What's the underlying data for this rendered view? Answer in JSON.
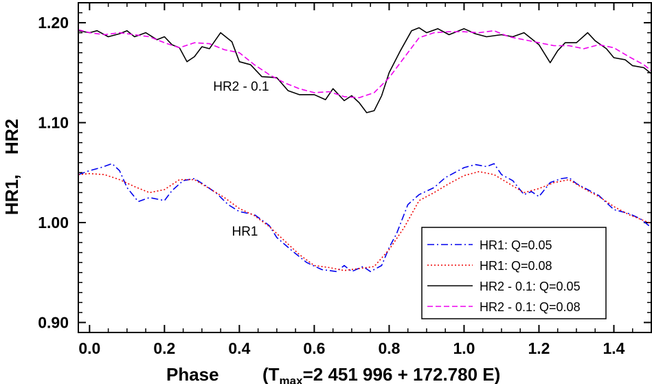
{
  "chart_data": {
    "type": "line",
    "xlabel": "Phase",
    "xlabel_note_prefix": "(T",
    "xlabel_note_sub": "max",
    "xlabel_note_suffix": "=2 451 996 + 172.780 E)",
    "ylabel": "HR1,    HR2",
    "xlim": [
      -0.03,
      1.5
    ],
    "ylim": [
      0.89,
      1.22
    ],
    "xticks": [
      0.0,
      0.2,
      0.4,
      0.6,
      0.8,
      1.0,
      1.2,
      1.4
    ],
    "xtick_labels": [
      "0.0",
      "0.2",
      "0.4",
      "0.6",
      "0.8",
      "1.0",
      "1.2",
      "1.4"
    ],
    "yticks": [
      0.9,
      1.0,
      1.1,
      1.2
    ],
    "ytick_labels": [
      "0.90",
      "1.00",
      "1.10",
      "1.20"
    ],
    "grid": false,
    "legend_position": "bottom-right",
    "annotations": [
      {
        "text": "HR2 - 0.1",
        "x": 0.33,
        "y": 1.132
      },
      {
        "text": "HR1",
        "x": 0.38,
        "y": 0.987
      }
    ],
    "series": [
      {
        "name": "HR1: Q=0.05",
        "color": "#0000ee",
        "dash": "10,4,2,4",
        "x": [
          -0.03,
          0.0,
          0.03,
          0.06,
          0.08,
          0.1,
          0.13,
          0.16,
          0.2,
          0.22,
          0.25,
          0.28,
          0.31,
          0.34,
          0.37,
          0.4,
          0.44,
          0.48,
          0.5,
          0.54,
          0.58,
          0.62,
          0.66,
          0.68,
          0.7,
          0.73,
          0.75,
          0.78,
          0.8,
          0.82,
          0.85,
          0.88,
          0.92,
          0.95,
          1.0,
          1.03,
          1.06,
          1.08,
          1.1,
          1.13,
          1.16,
          1.18,
          1.2,
          1.23,
          1.26,
          1.28,
          1.3,
          1.33,
          1.36,
          1.4,
          1.44,
          1.47,
          1.5
        ],
        "y": [
          1.048,
          1.052,
          1.055,
          1.059,
          1.052,
          1.035,
          1.021,
          1.025,
          1.022,
          1.032,
          1.042,
          1.044,
          1.037,
          1.029,
          1.018,
          1.011,
          1.008,
          0.997,
          0.985,
          0.972,
          0.96,
          0.953,
          0.951,
          0.957,
          0.951,
          0.956,
          0.951,
          0.957,
          0.975,
          0.989,
          1.018,
          1.028,
          1.035,
          1.045,
          1.055,
          1.058,
          1.056,
          1.059,
          1.048,
          1.042,
          1.028,
          1.031,
          1.026,
          1.04,
          1.044,
          1.045,
          1.039,
          1.033,
          1.027,
          1.013,
          1.009,
          1.004,
          0.995
        ]
      },
      {
        "name": "HR1: Q=0.08",
        "color": "#ee0000",
        "dash": "2,3",
        "x": [
          -0.03,
          0.0,
          0.04,
          0.08,
          0.12,
          0.16,
          0.2,
          0.24,
          0.28,
          0.32,
          0.36,
          0.4,
          0.44,
          0.48,
          0.52,
          0.56,
          0.6,
          0.64,
          0.68,
          0.72,
          0.76,
          0.8,
          0.84,
          0.88,
          0.92,
          0.96,
          1.0,
          1.04,
          1.08,
          1.12,
          1.16,
          1.2,
          1.24,
          1.28,
          1.32,
          1.36,
          1.4,
          1.44,
          1.48,
          1.5
        ],
        "y": [
          1.048,
          1.049,
          1.048,
          1.043,
          1.036,
          1.03,
          1.033,
          1.043,
          1.043,
          1.034,
          1.025,
          1.014,
          1.007,
          0.996,
          0.982,
          0.968,
          0.957,
          0.955,
          0.952,
          0.954,
          0.956,
          0.973,
          0.995,
          1.022,
          1.03,
          1.039,
          1.047,
          1.051,
          1.048,
          1.039,
          1.03,
          1.034,
          1.04,
          1.043,
          1.034,
          1.026,
          1.016,
          1.008,
          1.002,
          0.999
        ]
      },
      {
        "name": "HR2 - 0.1: Q=0.05",
        "color": "#000000",
        "dash": "",
        "x": [
          -0.03,
          0.0,
          0.02,
          0.05,
          0.08,
          0.1,
          0.12,
          0.15,
          0.18,
          0.2,
          0.22,
          0.24,
          0.26,
          0.28,
          0.3,
          0.32,
          0.35,
          0.38,
          0.4,
          0.43,
          0.46,
          0.5,
          0.53,
          0.56,
          0.6,
          0.63,
          0.65,
          0.68,
          0.7,
          0.72,
          0.74,
          0.76,
          0.78,
          0.8,
          0.83,
          0.86,
          0.88,
          0.9,
          0.93,
          0.96,
          1.0,
          1.03,
          1.06,
          1.1,
          1.13,
          1.16,
          1.2,
          1.23,
          1.25,
          1.27,
          1.3,
          1.33,
          1.35,
          1.38,
          1.4,
          1.43,
          1.45,
          1.48,
          1.5
        ],
        "y": [
          1.192,
          1.19,
          1.192,
          1.186,
          1.189,
          1.192,
          1.186,
          1.19,
          1.183,
          1.186,
          1.178,
          1.175,
          1.161,
          1.166,
          1.176,
          1.174,
          1.19,
          1.181,
          1.161,
          1.158,
          1.146,
          1.145,
          1.132,
          1.128,
          1.128,
          1.123,
          1.134,
          1.122,
          1.127,
          1.12,
          1.11,
          1.112,
          1.127,
          1.15,
          1.172,
          1.192,
          1.195,
          1.19,
          1.194,
          1.188,
          1.194,
          1.189,
          1.186,
          1.188,
          1.186,
          1.19,
          1.178,
          1.16,
          1.172,
          1.18,
          1.18,
          1.19,
          1.182,
          1.174,
          1.165,
          1.163,
          1.157,
          1.155,
          1.149
        ]
      },
      {
        "name": "HR2 - 0.1: Q=0.08",
        "color": "#ee00ee",
        "dash": "8,4",
        "x": [
          -0.03,
          0.0,
          0.04,
          0.08,
          0.12,
          0.16,
          0.2,
          0.24,
          0.28,
          0.32,
          0.36,
          0.4,
          0.44,
          0.48,
          0.52,
          0.56,
          0.6,
          0.64,
          0.68,
          0.72,
          0.76,
          0.8,
          0.84,
          0.88,
          0.92,
          0.96,
          1.0,
          1.04,
          1.08,
          1.12,
          1.16,
          1.2,
          1.24,
          1.28,
          1.32,
          1.36,
          1.4,
          1.44,
          1.48,
          1.5
        ],
        "y": [
          1.193,
          1.19,
          1.188,
          1.19,
          1.188,
          1.186,
          1.18,
          1.175,
          1.18,
          1.179,
          1.173,
          1.17,
          1.158,
          1.148,
          1.14,
          1.134,
          1.13,
          1.131,
          1.126,
          1.125,
          1.13,
          1.145,
          1.165,
          1.185,
          1.19,
          1.191,
          1.191,
          1.19,
          1.192,
          1.186,
          1.183,
          1.18,
          1.177,
          1.177,
          1.174,
          1.178,
          1.175,
          1.166,
          1.158,
          1.152
        ]
      }
    ]
  }
}
